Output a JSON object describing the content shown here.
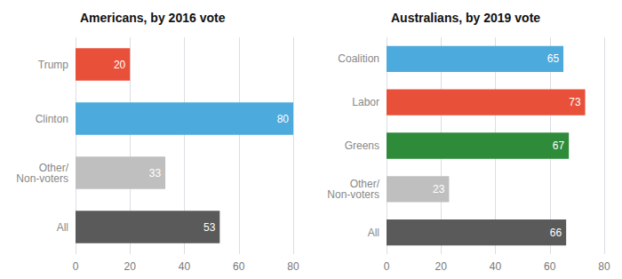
{
  "chart_data": [
    {
      "type": "bar",
      "orientation": "horizontal",
      "title": "Americans, by 2016 vote",
      "categories": [
        "Trump",
        "Clinton",
        "Other/\nNon-voters",
        "All"
      ],
      "values": [
        20,
        80,
        33,
        53
      ],
      "colors": [
        "#E8503A",
        "#4DAADC",
        "#C0BFBF",
        "#5A5A5A"
      ],
      "xlim": [
        0,
        80
      ],
      "xticks": [
        0,
        20,
        40,
        60,
        80
      ],
      "grid": true,
      "data_labels": true
    },
    {
      "type": "bar",
      "orientation": "horizontal",
      "title": "Australians, by 2019 vote",
      "categories": [
        "Coalition",
        "Labor",
        "Greens",
        "Other/\nNon-voters",
        "All"
      ],
      "values": [
        65,
        73,
        67,
        23,
        66
      ],
      "colors": [
        "#4DAADC",
        "#E8503A",
        "#2D8B3A",
        "#C0BFBF",
        "#5A5A5A"
      ],
      "xlim": [
        0,
        80
      ],
      "xticks": [
        0,
        20,
        40,
        60,
        80
      ],
      "grid": true,
      "data_labels": true
    }
  ]
}
